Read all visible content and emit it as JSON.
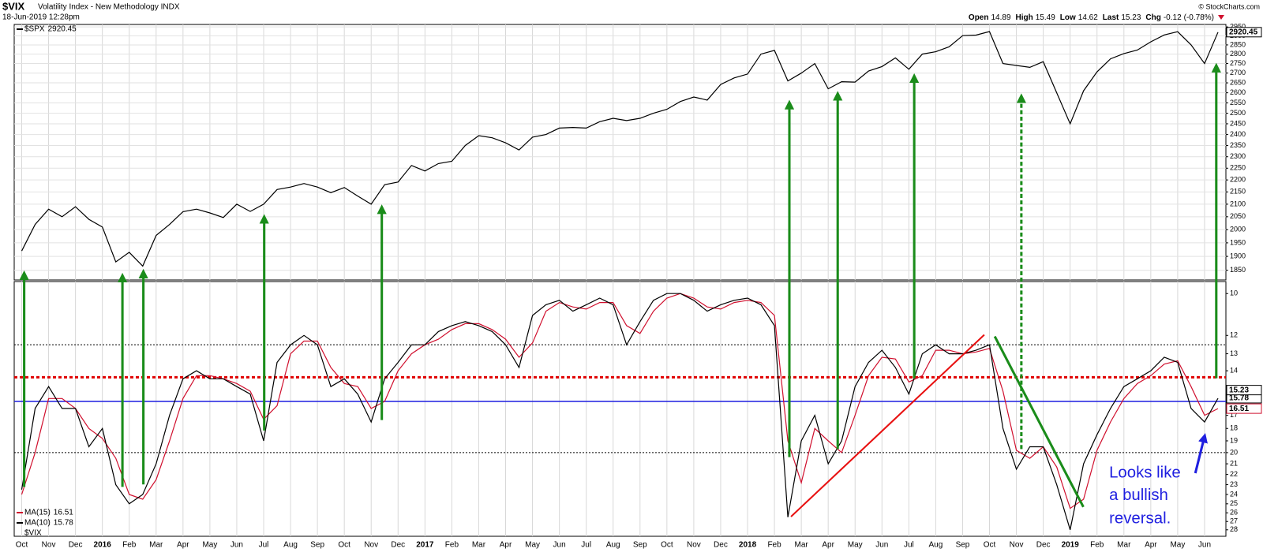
{
  "header": {
    "symbol": "$VIX",
    "name": "Volatility Index - New Methodology INDX",
    "date": "18-Jun-2019 12:28pm",
    "quote": [
      {
        "label": "Open",
        "value": 14.89
      },
      {
        "label": "High",
        "value": 15.49
      },
      {
        "label": "Low",
        "value": 14.62
      },
      {
        "label": "Last",
        "value": 15.23
      },
      {
        "label": "Chg",
        "value": -0.12,
        "pct": "(-0.78%)"
      }
    ],
    "credit": "© StockCharts.com"
  },
  "annotation": [
    "Looks like",
    "a bullish",
    "reversal."
  ],
  "chart_data": [
    {
      "type": "line",
      "log_scale": true,
      "grid": "both",
      "ylim": [
        1816,
        2964
      ],
      "yticks": [
        1850,
        1900,
        1950,
        2000,
        2050,
        2100,
        2150,
        2200,
        2250,
        2300,
        2350,
        2400,
        2450,
        2500,
        2550,
        2600,
        2650,
        2700,
        2750,
        2800,
        2850,
        2900,
        2950
      ],
      "categories": [
        "Oct",
        null,
        "Nov",
        null,
        "Dec",
        null,
        "2016",
        null,
        "Feb",
        null,
        "Mar",
        null,
        "Apr",
        null,
        "May",
        null,
        "Jun",
        null,
        "Jul",
        null,
        "Aug",
        null,
        "Sep",
        null,
        "Oct",
        null,
        "Nov",
        null,
        "Dec",
        null,
        "2017",
        null,
        "Feb",
        null,
        "Mar",
        null,
        "Apr",
        null,
        "May",
        null,
        "Jun",
        null,
        "Jul",
        null,
        "Aug",
        null,
        "Sep",
        null,
        "Oct",
        null,
        "Nov",
        null,
        "Dec",
        null,
        "2018",
        null,
        "Feb",
        null,
        "Mar",
        null,
        "Apr",
        null,
        "May",
        null,
        "Jun",
        null,
        "Jul",
        null,
        "Aug",
        null,
        "Sep",
        null,
        "Oct",
        null,
        "Nov",
        null,
        "Dec",
        null,
        "2019",
        null,
        "Feb",
        null,
        "Mar",
        null,
        "Apr",
        null,
        "May",
        null,
        "Jun",
        null
      ],
      "series": [
        {
          "name": "$SPX",
          "color": "#000000",
          "values": [
            1920,
            2020,
            2080,
            2050,
            2090,
            2040,
            2010,
            1880,
            1915,
            1865,
            1978,
            2020,
            2070,
            2080,
            2065,
            2047,
            2100,
            2071,
            2100,
            2160,
            2170,
            2185,
            2170,
            2147,
            2168,
            2133,
            2100,
            2180,
            2191,
            2262,
            2238,
            2270,
            2280,
            2350,
            2395,
            2385,
            2362,
            2330,
            2388,
            2400,
            2430,
            2433,
            2430,
            2460,
            2476,
            2465,
            2476,
            2500,
            2519,
            2557,
            2579,
            2564,
            2642,
            2675,
            2695,
            2800,
            2820,
            2660,
            2700,
            2750,
            2620,
            2656,
            2654,
            2711,
            2734,
            2780,
            2720,
            2800,
            2813,
            2840,
            2901,
            2904,
            2924,
            2750,
            2740,
            2730,
            2760,
            2600,
            2450,
            2610,
            2706,
            2775,
            2803,
            2822,
            2867,
            2905,
            2923,
            2850,
            2750,
            2920.45
          ]
        }
      ]
    },
    {
      "type": "line",
      "title": "$VIX",
      "log_scale": true,
      "inverted": true,
      "grid": "x",
      "ylim": [
        9.49,
        28.8
      ],
      "yticks": [
        10,
        12,
        13,
        14,
        17,
        18,
        19,
        20,
        21,
        22,
        23,
        24,
        25,
        26,
        27,
        28
      ],
      "levels": [
        {
          "value": 12.5,
          "color": "#000000",
          "style": "dotted"
        },
        {
          "value": 14.4,
          "color": "#e00000",
          "style": "heavy-dotted"
        },
        {
          "value": 16,
          "color": "#1f1fe0",
          "style": "solid"
        },
        {
          "value": 20,
          "color": "#000000",
          "style": "dotted"
        }
      ],
      "categories": [
        "Oct",
        null,
        "Nov",
        null,
        "Dec",
        null,
        "2016",
        null,
        "Feb",
        null,
        "Mar",
        null,
        "Apr",
        null,
        "May",
        null,
        "Jun",
        null,
        "Jul",
        null,
        "Aug",
        null,
        "Sep",
        null,
        "Oct",
        null,
        "Nov",
        null,
        "Dec",
        null,
        "2017",
        null,
        "Feb",
        null,
        "Mar",
        null,
        "Apr",
        null,
        "May",
        null,
        "Jun",
        null,
        "Jul",
        null,
        "Aug",
        null,
        "Sep",
        null,
        "Oct",
        null,
        "Nov",
        null,
        "Dec",
        null,
        "2018",
        null,
        "Feb",
        null,
        "Mar",
        null,
        "Apr",
        null,
        "May",
        null,
        "Jun",
        null,
        "Jul",
        null,
        "Aug",
        null,
        "Sep",
        null,
        "Oct",
        null,
        "Nov",
        null,
        "Dec",
        null,
        "2019",
        null,
        "Feb",
        null,
        "Mar",
        null,
        "Apr",
        null,
        "May",
        null,
        "Jun",
        null
      ],
      "series": [
        {
          "name": "MA(15)",
          "color": "#d0102e",
          "values": [
            24,
            20,
            15.8,
            15.8,
            16.5,
            18,
            18.8,
            20.5,
            24,
            24.5,
            22.5,
            19,
            15.8,
            14.3,
            14.3,
            14.5,
            14.8,
            15.3,
            17.3,
            16.3,
            13,
            12.3,
            12.3,
            13.8,
            14.8,
            15,
            16.5,
            16,
            14,
            13,
            12.5,
            12.2,
            11.7,
            11.4,
            11.4,
            11.7,
            12.2,
            13.2,
            12.4,
            10.8,
            10.4,
            10.6,
            10.7,
            10.4,
            10.4,
            11.5,
            11.9,
            10.8,
            10.2,
            10,
            10.2,
            10.6,
            10.7,
            10.4,
            10.3,
            10.4,
            11,
            19,
            22.8,
            18,
            19,
            20,
            17,
            14.3,
            13.2,
            13.3,
            14.7,
            14.3,
            12.8,
            12.8,
            13,
            12.9,
            12.7,
            15.3,
            19.8,
            20.5,
            19.5,
            21.3,
            25.5,
            24.5,
            19.8,
            17.5,
            15.8,
            14.8,
            14.3,
            13.6,
            13.4,
            15,
            17,
            16.51
          ]
        },
        {
          "name": "MA(10)",
          "color": "#000000",
          "values": [
            23.5,
            16.5,
            15,
            16.5,
            16.5,
            19.5,
            18,
            23,
            25,
            24,
            21,
            17,
            14.5,
            14,
            14.5,
            14.5,
            15,
            15.5,
            19,
            13.5,
            12.5,
            12,
            12.5,
            15,
            14.5,
            15.5,
            17.5,
            14.5,
            13.5,
            12.5,
            12.5,
            11.8,
            11.5,
            11.3,
            11.5,
            11.8,
            12.5,
            13.8,
            11,
            10.5,
            10.3,
            10.8,
            10.5,
            10.2,
            10.5,
            12.5,
            11.3,
            10.3,
            10,
            10,
            10.3,
            10.8,
            10.5,
            10.3,
            10.2,
            10.5,
            11.5,
            26.5,
            19,
            17,
            21,
            19,
            15,
            13.5,
            12.8,
            13.8,
            15.5,
            13,
            12.5,
            13,
            13,
            12.8,
            12.5,
            18,
            21.5,
            19.5,
            19.5,
            23,
            28,
            21,
            18.5,
            16.5,
            15,
            14.5,
            14,
            13.2,
            13.5,
            16.5,
            17.5,
            15.78
          ]
        }
      ]
    }
  ]
}
